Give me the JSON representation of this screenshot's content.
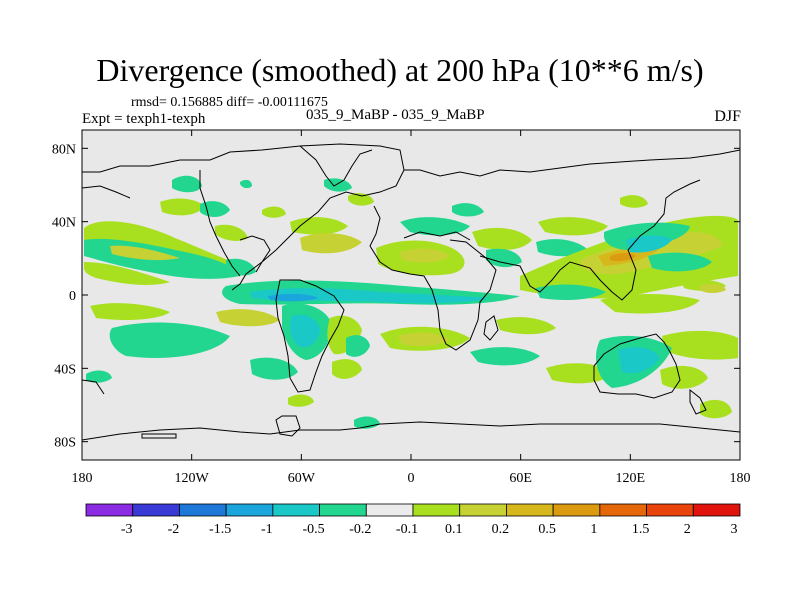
{
  "title": "Divergence (smoothed) at 200 hPa (10**6 m/s)",
  "stats": "rmsd= 0.156885 diff= -0.00111675",
  "experiment": "Expt = texph1-texph",
  "case": "035_9_MaBP - 035_9_MaBP",
  "season": "DJF",
  "map": {
    "lon_range": [
      -180,
      180
    ],
    "lat_range": [
      -90,
      90
    ],
    "background_color": "#e8e8e8",
    "coastline_color": "#000000",
    "x_ticks": [
      {
        "lon": -180,
        "label": "180"
      },
      {
        "lon": -120,
        "label": "120W"
      },
      {
        "lon": -60,
        "label": "60W"
      },
      {
        "lon": 0,
        "label": "0"
      },
      {
        "lon": 60,
        "label": "60E"
      },
      {
        "lon": 120,
        "label": "120E"
      },
      {
        "lon": 180,
        "label": "180"
      }
    ],
    "y_ticks": [
      {
        "lat": 80,
        "label": "80N"
      },
      {
        "lat": 40,
        "label": "40N"
      },
      {
        "lat": 0,
        "label": "0"
      },
      {
        "lat": -40,
        "label": "40S"
      },
      {
        "lat": -80,
        "label": "80S"
      }
    ]
  },
  "colorbar": {
    "colors": [
      "#8b2be2",
      "#3a3ad6",
      "#1e78d8",
      "#1aa6dc",
      "#1ac8c8",
      "#22d690",
      "#ebebeb",
      "#a8e020",
      "#c6d234",
      "#d6b81c",
      "#dc9a10",
      "#e4680a",
      "#e8440c",
      "#e0140c"
    ],
    "labels": [
      "-3",
      "-2",
      "-1.5",
      "-1",
      "-0.5",
      "-0.2",
      "-0.1",
      "0.1",
      "0.2",
      "0.5",
      "1",
      "1.5",
      "2",
      "3"
    ]
  },
  "fields": {
    "legend_note": "colors used for contour regions",
    "c_neg_weak": "#22d690",
    "c_neg_mid": "#1ac8c8",
    "c_neg_strong": "#1aa6dc",
    "c_pos_weak": "#a8e020",
    "c_pos_mid": "#c6d234",
    "c_pos_strong": "#d6b81c",
    "c_pos_max": "#dc9a10"
  }
}
